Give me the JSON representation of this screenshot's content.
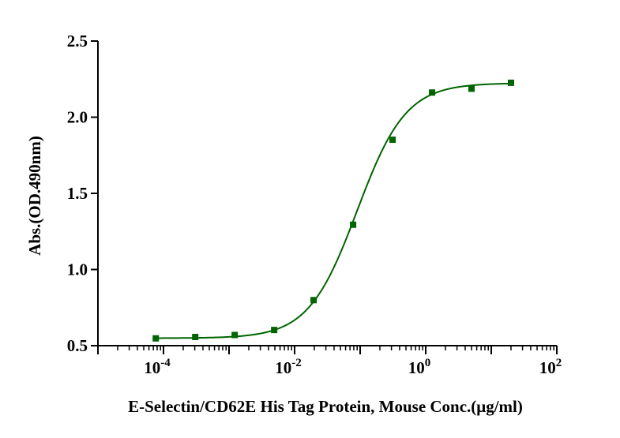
{
  "chart_data": {
    "type": "scatter",
    "title": "",
    "xlabel": "E-Selectin/CD62E His Tag Protein, Mouse Conc.(μg/ml)",
    "ylabel": "Abs.(OD.490nm)",
    "x_scale": "log",
    "xlim": [
      1e-05,
      100
    ],
    "ylim": [
      0.5,
      2.5
    ],
    "x_ticks": [
      {
        "value": 0.0001,
        "base": "10",
        "exp": "-4"
      },
      {
        "value": 0.01,
        "base": "10",
        "exp": "-2"
      },
      {
        "value": 1,
        "base": "10",
        "exp": "0"
      },
      {
        "value": 100,
        "base": "10",
        "exp": "2"
      }
    ],
    "y_ticks": [
      {
        "value": 0.5,
        "label": "0.5"
      },
      {
        "value": 1.0,
        "label": "1.0"
      },
      {
        "value": 1.5,
        "label": "1.5"
      },
      {
        "value": 2.0,
        "label": "2.0"
      },
      {
        "value": 2.5,
        "label": "2.5"
      }
    ],
    "series": [
      {
        "color": "#006400",
        "marker": "square",
        "x": [
          7.63e-05,
          0.000305,
          0.00122,
          0.00488,
          0.0195,
          0.0781,
          0.3125,
          1.25,
          5.0,
          20.0
        ],
        "y": [
          0.548,
          0.557,
          0.57,
          0.603,
          0.799,
          1.294,
          1.852,
          2.162,
          2.187,
          2.226
        ]
      }
    ],
    "fit_curve": {
      "type": "4PL",
      "color": "#006400",
      "bottom": 0.549,
      "top": 2.224,
      "ec50": 0.09,
      "hill": 1.17
    },
    "grid": false,
    "legend": "none"
  }
}
